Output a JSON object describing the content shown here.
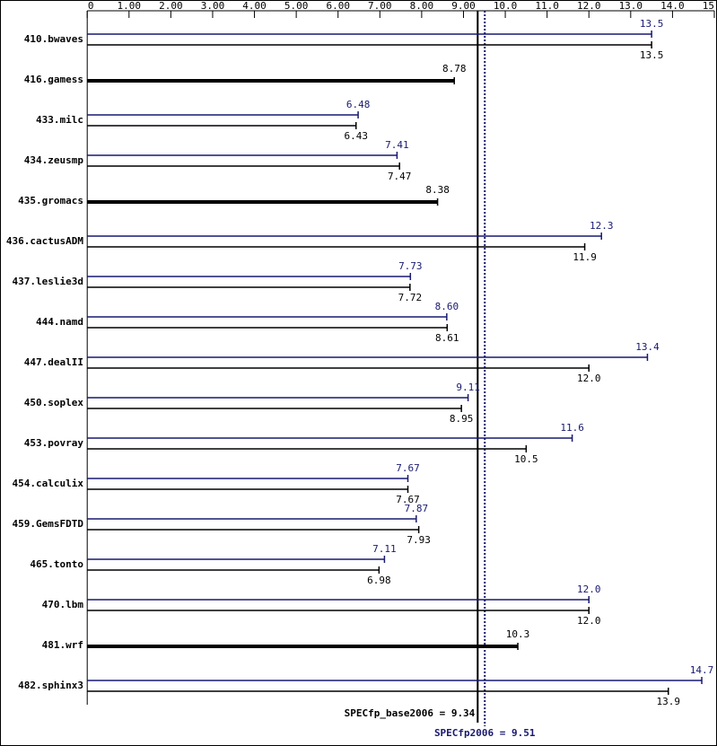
{
  "chart_data": {
    "type": "bar",
    "orientation": "horizontal",
    "categories": [
      "410.bwaves",
      "416.gamess",
      "433.milc",
      "434.zeusmp",
      "435.gromacs",
      "436.cactusADM",
      "437.leslie3d",
      "444.namd",
      "447.dealII",
      "450.soplex",
      "453.povray",
      "454.calculix",
      "459.GemsFDTD",
      "465.tonto",
      "470.lbm",
      "481.wrf",
      "482.sphinx3"
    ],
    "series": [
      {
        "color": "#191970",
        "values": [
          13.5,
          null,
          6.48,
          7.41,
          null,
          12.3,
          7.73,
          8.6,
          13.4,
          9.11,
          11.6,
          7.67,
          7.87,
          7.11,
          12.0,
          null,
          14.7
        ],
        "value_labels": [
          "13.5",
          null,
          "6.48",
          "7.41",
          null,
          "12.3",
          "7.73",
          "8.60",
          "13.4",
          "9.11",
          "11.6",
          "7.67",
          "7.87",
          "7.11",
          "12.0",
          null,
          "14.7"
        ]
      },
      {
        "color": "#000000",
        "values": [
          13.5,
          8.78,
          6.43,
          7.47,
          8.38,
          11.9,
          7.72,
          8.61,
          12.0,
          8.95,
          10.5,
          7.67,
          7.93,
          6.98,
          12.0,
          10.3,
          13.9
        ],
        "value_labels": [
          "13.5",
          "8.78",
          "6.43",
          "7.47",
          "8.38",
          "11.9",
          "7.72",
          "8.61",
          "12.0",
          "8.95",
          "10.5",
          "7.67",
          "7.93",
          "6.98",
          "12.0",
          "10.3",
          "13.9"
        ]
      }
    ],
    "xlim": [
      0,
      15
    ],
    "xticks": [
      0,
      {
        "value": 1,
        "label": "1.00"
      },
      {
        "value": 2,
        "label": "2.00"
      },
      {
        "value": 3,
        "label": "3.00"
      },
      {
        "value": 4,
        "label": "4.00"
      },
      {
        "value": 5,
        "label": "5.00"
      },
      {
        "value": 6,
        "label": "6.00"
      },
      {
        "value": 7,
        "label": "7.00"
      },
      {
        "value": 8,
        "label": "8.00"
      },
      {
        "value": 9,
        "label": "9.00"
      },
      {
        "value": 10,
        "label": "10.0"
      },
      {
        "value": 11,
        "label": "11.0"
      },
      {
        "value": 12,
        "label": "12.0"
      },
      {
        "value": 13,
        "label": "13.0"
      },
      {
        "value": 14,
        "label": "14.0"
      },
      {
        "value": 15,
        "label": "15.0"
      }
    ],
    "reference_lines": [
      {
        "label": "SPECfp_base2006 = 9.34",
        "value": 9.34,
        "color": "#000000",
        "style": "solid"
      },
      {
        "label": "SPECfp2006 = 9.51",
        "value": 9.51,
        "color": "#191970",
        "style": "dotted"
      }
    ]
  }
}
